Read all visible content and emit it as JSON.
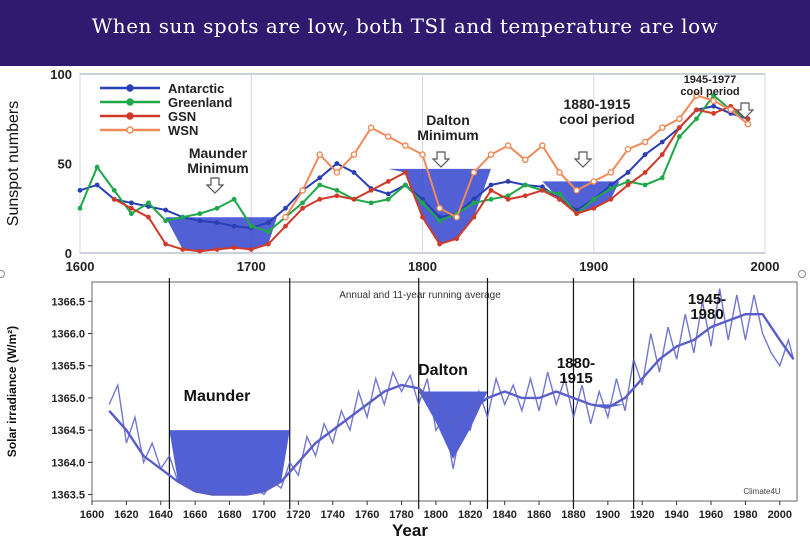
{
  "slide": {
    "title": "When sun spots are  low, both TSI and temperature are low"
  },
  "colors": {
    "title_bg": "#2e1a6e",
    "fill": "#3f4fd0",
    "antarctic": "#2a3fb5",
    "greenland": "#1ea84a",
    "gsn": "#d03a2a",
    "wsn": "#f08a5a",
    "tsi": "#5a5fc8"
  },
  "chart_data": [
    {
      "type": "line",
      "ylabel": "Sunspot numbers",
      "xlim": [
        1600,
        2000
      ],
      "ylim": [
        0,
        100
      ],
      "x_ticks": [
        "1600",
        "1700",
        "1800",
        "1900",
        "2000"
      ],
      "y_ticks": [
        "0",
        "50",
        "100"
      ],
      "legend": {
        "placement": "top-left",
        "entries": [
          "Antarctic",
          "Greenland",
          "GSN",
          "WSN"
        ]
      },
      "annotations": [
        {
          "text": "Maunder Minimum",
          "x": 1680,
          "y": 40
        },
        {
          "text": "Dalton Minimum",
          "x": 1815,
          "y": 65
        },
        {
          "text": "1880-1915 cool period",
          "x": 1885,
          "y": 72
        },
        {
          "text": "1945-1977 cool period",
          "x": 1955,
          "y": 94
        }
      ],
      "minima": [
        {
          "name": "Maunder",
          "x_start": 1650,
          "x_end": 1715,
          "top": 20
        },
        {
          "name": "Dalton",
          "x_start": 1780,
          "x_end": 1840,
          "top": 47
        },
        {
          "name": "1880-1915",
          "x_start": 1870,
          "x_end": 1915,
          "top": 40
        }
      ],
      "series": [
        {
          "name": "Antarctic",
          "x": [
            1600,
            1610,
            1620,
            1630,
            1640,
            1650,
            1660,
            1670,
            1680,
            1690,
            1700,
            1710,
            1720,
            1730,
            1740,
            1750,
            1760,
            1770,
            1780,
            1790,
            1800,
            1810,
            1820,
            1830,
            1840,
            1850,
            1860,
            1870,
            1880,
            1890,
            1900,
            1910,
            1920,
            1930,
            1940,
            1950,
            1960,
            1970,
            1980,
            1990
          ],
          "values": [
            35,
            38,
            30,
            28,
            26,
            24,
            20,
            18,
            17,
            15,
            14,
            17,
            25,
            35,
            42,
            50,
            45,
            36,
            33,
            38,
            30,
            20,
            22,
            30,
            38,
            40,
            38,
            37,
            30,
            24,
            30,
            38,
            45,
            55,
            62,
            70,
            80,
            82,
            78,
            75
          ]
        },
        {
          "name": "Greenland",
          "x": [
            1600,
            1610,
            1620,
            1630,
            1640,
            1650,
            1660,
            1670,
            1680,
            1690,
            1700,
            1710,
            1720,
            1730,
            1740,
            1750,
            1760,
            1770,
            1780,
            1790,
            1800,
            1810,
            1820,
            1830,
            1840,
            1850,
            1860,
            1870,
            1880,
            1890,
            1900,
            1910,
            1920,
            1930,
            1940,
            1950,
            1960,
            1970,
            1980,
            1990
          ],
          "values": [
            25,
            48,
            35,
            22,
            28,
            18,
            20,
            22,
            25,
            30,
            15,
            12,
            20,
            28,
            38,
            35,
            30,
            28,
            30,
            38,
            28,
            18,
            22,
            28,
            30,
            32,
            38,
            35,
            33,
            22,
            30,
            36,
            40,
            38,
            42,
            65,
            75,
            88,
            80,
            75
          ]
        },
        {
          "name": "GSN",
          "x": [
            1600,
            1610,
            1620,
            1630,
            1640,
            1650,
            1660,
            1670,
            1680,
            1690,
            1700,
            1710,
            1720,
            1730,
            1740,
            1750,
            1760,
            1770,
            1780,
            1790,
            1800,
            1810,
            1820,
            1830,
            1840,
            1850,
            1860,
            1870,
            1880,
            1890,
            1900,
            1910,
            1920,
            1930,
            1940,
            1950,
            1960,
            1970,
            1980,
            1990
          ],
          "values": [
            null,
            null,
            30,
            25,
            20,
            5,
            2,
            1,
            2,
            3,
            2,
            5,
            15,
            25,
            30,
            32,
            30,
            35,
            40,
            45,
            20,
            5,
            8,
            20,
            35,
            30,
            32,
            35,
            30,
            22,
            25,
            30,
            38,
            45,
            55,
            70,
            80,
            78,
            82,
            75
          ]
        },
        {
          "name": "WSN",
          "x": [
            1600,
            1610,
            1620,
            1630,
            1640,
            1650,
            1660,
            1670,
            1680,
            1690,
            1700,
            1710,
            1720,
            1730,
            1740,
            1750,
            1760,
            1770,
            1780,
            1790,
            1800,
            1810,
            1820,
            1830,
            1840,
            1850,
            1860,
            1870,
            1880,
            1890,
            1900,
            1910,
            1920,
            1930,
            1940,
            1950,
            1960,
            1970,
            1980,
            1990
          ],
          "values": [
            null,
            null,
            null,
            null,
            null,
            null,
            null,
            null,
            null,
            null,
            null,
            null,
            20,
            35,
            55,
            45,
            55,
            70,
            65,
            60,
            55,
            25,
            20,
            45,
            55,
            60,
            52,
            60,
            45,
            35,
            40,
            45,
            58,
            62,
            70,
            75,
            88,
            85,
            80,
            72
          ]
        }
      ]
    },
    {
      "type": "line",
      "title": "Annual and 11-year running average",
      "xlabel": "Year",
      "ylabel": "Solar irradiance (W/m²)",
      "xlim": [
        1600,
        2010
      ],
      "ylim": [
        1363.4,
        1366.8
      ],
      "x_ticks": [
        "1600",
        "1620",
        "1640",
        "1660",
        "1680",
        "1700",
        "1720",
        "1740",
        "1760",
        "1780",
        "1800",
        "1820",
        "1840",
        "1860",
        "1880",
        "1900",
        "1920",
        "1940",
        "1960",
        "1980",
        "2000"
      ],
      "y_ticks": [
        "1363.5",
        "1364.0",
        "1364.5",
        "1365.0",
        "1365.5",
        "1366.0",
        "1366.5"
      ],
      "credit": "Climate4U",
      "annotations": [
        {
          "text": "Maunder",
          "x": 1680,
          "y": 1364.95
        },
        {
          "text": "Dalton",
          "x": 1815,
          "y": 1365.25
        },
        {
          "text": "1880-1915",
          "x": 1895,
          "y": 1365.45
        },
        {
          "text": "1945-1980",
          "x": 1970,
          "y": 1366.45
        }
      ],
      "minima": [
        {
          "name": "Maunder",
          "x_start": 1645,
          "x_end": 1715,
          "top": 1364.5
        },
        {
          "name": "Dalton",
          "x_start": 1790,
          "x_end": 1830,
          "top": 1365.1
        },
        {
          "name": "1880-1915",
          "x_start": 1880,
          "x_end": 1915,
          "top": 1364.9
        },
        {
          "name": "1945-1980",
          "x_start": 1955,
          "x_end": 1985,
          "top": 1366.05
        }
      ],
      "series": [
        {
          "name": "11-year running average",
          "x": [
            1610,
            1620,
            1630,
            1640,
            1650,
            1660,
            1670,
            1680,
            1690,
            1700,
            1710,
            1720,
            1730,
            1740,
            1750,
            1760,
            1770,
            1780,
            1790,
            1800,
            1810,
            1820,
            1830,
            1840,
            1850,
            1860,
            1870,
            1880,
            1890,
            1900,
            1910,
            1920,
            1930,
            1940,
            1950,
            1960,
            1970,
            1980,
            1990,
            2000,
            2008
          ],
          "values": [
            1364.8,
            1364.5,
            1364.1,
            1363.9,
            1363.7,
            1363.55,
            1363.5,
            1363.5,
            1363.5,
            1363.55,
            1363.7,
            1364.0,
            1364.3,
            1364.5,
            1364.7,
            1364.9,
            1365.1,
            1365.2,
            1365.15,
            1364.9,
            1364.6,
            1364.8,
            1365.0,
            1365.1,
            1365.0,
            1365.0,
            1365.1,
            1365.0,
            1364.9,
            1364.85,
            1365.0,
            1365.3,
            1365.6,
            1365.8,
            1365.9,
            1366.1,
            1366.2,
            1366.3,
            1366.3,
            1365.9,
            1365.6
          ]
        },
        {
          "name": "Annual",
          "x": [
            1610,
            1615,
            1620,
            1625,
            1630,
            1635,
            1640,
            1645,
            1650,
            1655,
            1660,
            1665,
            1670,
            1675,
            1680,
            1685,
            1690,
            1695,
            1700,
            1705,
            1710,
            1715,
            1720,
            1725,
            1730,
            1735,
            1740,
            1745,
            1750,
            1755,
            1760,
            1765,
            1770,
            1775,
            1780,
            1785,
            1790,
            1795,
            1800,
            1805,
            1810,
            1815,
            1820,
            1825,
            1830,
            1835,
            1840,
            1845,
            1850,
            1855,
            1860,
            1865,
            1870,
            1875,
            1880,
            1885,
            1890,
            1895,
            1900,
            1905,
            1910,
            1915,
            1920,
            1925,
            1930,
            1935,
            1940,
            1945,
            1950,
            1955,
            1960,
            1965,
            1970,
            1975,
            1980,
            1985,
            1990,
            1995,
            2000,
            2005,
            2008
          ],
          "values": [
            1364.9,
            1365.2,
            1364.3,
            1364.7,
            1364.0,
            1364.3,
            1363.9,
            1364.1,
            1363.7,
            1363.8,
            1363.55,
            1363.6,
            1363.5,
            1363.55,
            1363.5,
            1363.55,
            1363.5,
            1363.6,
            1363.5,
            1363.7,
            1363.6,
            1364.0,
            1363.8,
            1364.4,
            1364.1,
            1364.6,
            1364.3,
            1364.8,
            1364.5,
            1365.1,
            1364.7,
            1365.3,
            1364.9,
            1365.4,
            1365.1,
            1365.35,
            1364.9,
            1365.3,
            1364.5,
            1364.7,
            1363.9,
            1364.6,
            1364.5,
            1365.1,
            1364.7,
            1365.3,
            1364.9,
            1365.2,
            1364.8,
            1365.3,
            1364.8,
            1365.4,
            1364.9,
            1365.3,
            1364.7,
            1365.2,
            1364.6,
            1365.1,
            1364.7,
            1365.3,
            1364.8,
            1365.6,
            1365.2,
            1366.0,
            1365.4,
            1366.1,
            1365.6,
            1366.3,
            1365.7,
            1366.5,
            1365.8,
            1366.7,
            1365.9,
            1366.6,
            1365.9,
            1366.6,
            1366.0,
            1365.7,
            1365.5,
            1365.9,
            1365.6
          ]
        }
      ]
    }
  ]
}
